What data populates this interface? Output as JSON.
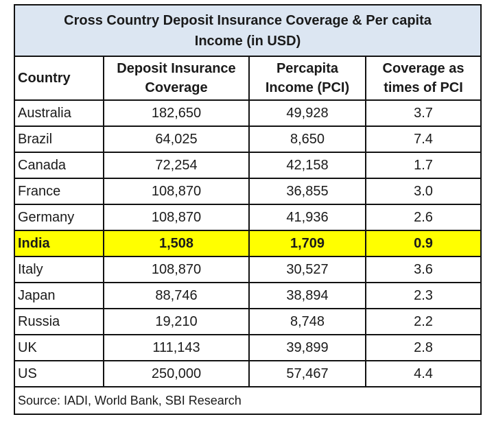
{
  "table": {
    "title_line1": "Cross Country Deposit Insurance Coverage & Per capita",
    "title_line2": "Income (in USD)",
    "headers": {
      "country": "Country",
      "coverage_l1": "Deposit Insurance",
      "coverage_l2": "Coverage",
      "pci_l1": "Percapita",
      "pci_l2": "Income (PCI)",
      "times_l1": "Coverage as",
      "times_l2": "times of PCI"
    },
    "rows": [
      {
        "country": "Australia",
        "coverage": "182,650",
        "pci": "49,928",
        "times": "3.7"
      },
      {
        "country": "Brazil",
        "coverage": "64,025",
        "pci": "8,650",
        "times": "7.4"
      },
      {
        "country": "Canada",
        "coverage": "72,254",
        "pci": "42,158",
        "times": "1.7"
      },
      {
        "country": "France",
        "coverage": "108,870",
        "pci": "36,855",
        "times": "3.0"
      },
      {
        "country": "Germany",
        "coverage": "108,870",
        "pci": "41,936",
        "times": "2.6"
      },
      {
        "country": "India",
        "coverage": "1,508",
        "pci": "1,709",
        "times": "0.9"
      },
      {
        "country": "Italy",
        "coverage": "108,870",
        "pci": "30,527",
        "times": "3.6"
      },
      {
        "country": "Japan",
        "coverage": "88,746",
        "pci": "38,894",
        "times": "2.3"
      },
      {
        "country": "Russia",
        "coverage": "19,210",
        "pci": "8,748",
        "times": "2.2"
      },
      {
        "country": "UK",
        "coverage": "111,143",
        "pci": "39,899",
        "times": "2.8"
      },
      {
        "country": "US",
        "coverage": "250,000",
        "pci": "57,467",
        "times": "4.4"
      }
    ],
    "source": "Source: IADI, World Bank, SBI Research",
    "highlight_color": "#ffff00",
    "title_background": "#dce6f2"
  }
}
